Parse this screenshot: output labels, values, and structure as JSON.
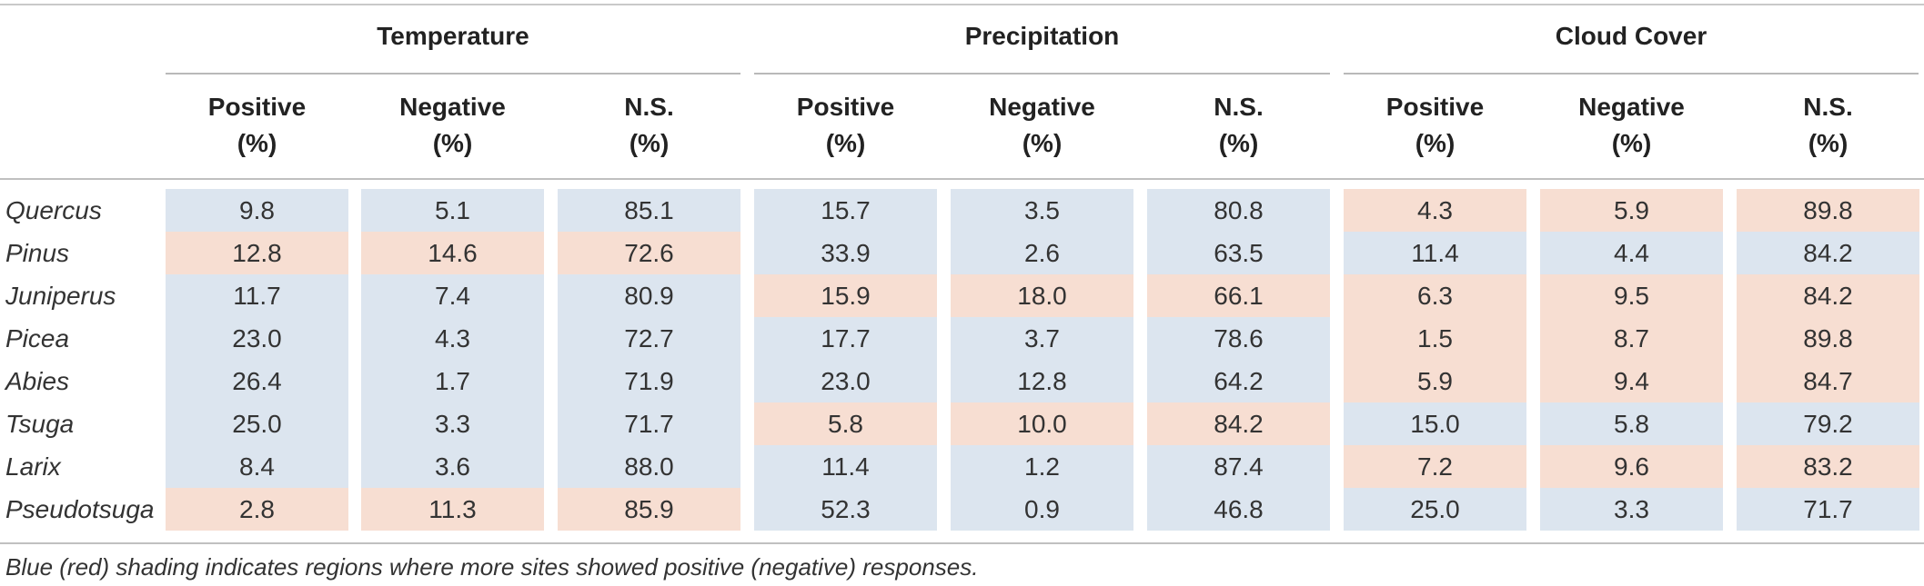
{
  "groups": [
    "Temperature",
    "Precipitation",
    "Cloud Cover"
  ],
  "subcolumns": [
    {
      "line1": "Positive",
      "line2": "(%)"
    },
    {
      "line1": "Negative",
      "line2": "(%)"
    },
    {
      "line1": "N.S.",
      "line2": "(%)"
    }
  ],
  "shading_colors": {
    "blue": "#dce5ef",
    "red": "#f7ded2"
  },
  "rows": [
    {
      "genus": "Quercus",
      "values": [
        "9.8",
        "5.1",
        "85.1",
        "15.7",
        "3.5",
        "80.8",
        "4.3",
        "5.9",
        "89.8"
      ],
      "shading": [
        "blue",
        "blue",
        "red"
      ]
    },
    {
      "genus": "Pinus",
      "values": [
        "12.8",
        "14.6",
        "72.6",
        "33.9",
        "2.6",
        "63.5",
        "11.4",
        "4.4",
        "84.2"
      ],
      "shading": [
        "red",
        "blue",
        "blue"
      ]
    },
    {
      "genus": "Juniperus",
      "values": [
        "11.7",
        "7.4",
        "80.9",
        "15.9",
        "18.0",
        "66.1",
        "6.3",
        "9.5",
        "84.2"
      ],
      "shading": [
        "blue",
        "red",
        "red"
      ]
    },
    {
      "genus": "Picea",
      "values": [
        "23.0",
        "4.3",
        "72.7",
        "17.7",
        "3.7",
        "78.6",
        "1.5",
        "8.7",
        "89.8"
      ],
      "shading": [
        "blue",
        "blue",
        "red"
      ]
    },
    {
      "genus": "Abies",
      "values": [
        "26.4",
        "1.7",
        "71.9",
        "23.0",
        "12.8",
        "64.2",
        "5.9",
        "9.4",
        "84.7"
      ],
      "shading": [
        "blue",
        "blue",
        "red"
      ]
    },
    {
      "genus": "Tsuga",
      "values": [
        "25.0",
        "3.3",
        "71.7",
        "5.8",
        "10.0",
        "84.2",
        "15.0",
        "5.8",
        "79.2"
      ],
      "shading": [
        "blue",
        "red",
        "blue"
      ]
    },
    {
      "genus": "Larix",
      "values": [
        "8.4",
        "3.6",
        "88.0",
        "11.4",
        "1.2",
        "87.4",
        "7.2",
        "9.6",
        "83.2"
      ],
      "shading": [
        "blue",
        "blue",
        "red"
      ]
    },
    {
      "genus": "Pseudotsuga",
      "values": [
        "2.8",
        "11.3",
        "85.9",
        "52.3",
        "0.9",
        "46.8",
        "25.0",
        "3.3",
        "71.7"
      ],
      "shading": [
        "red",
        "blue",
        "blue"
      ]
    }
  ],
  "footnote": "Blue (red) shading indicates regions where more sites showed positive (negative) responses."
}
